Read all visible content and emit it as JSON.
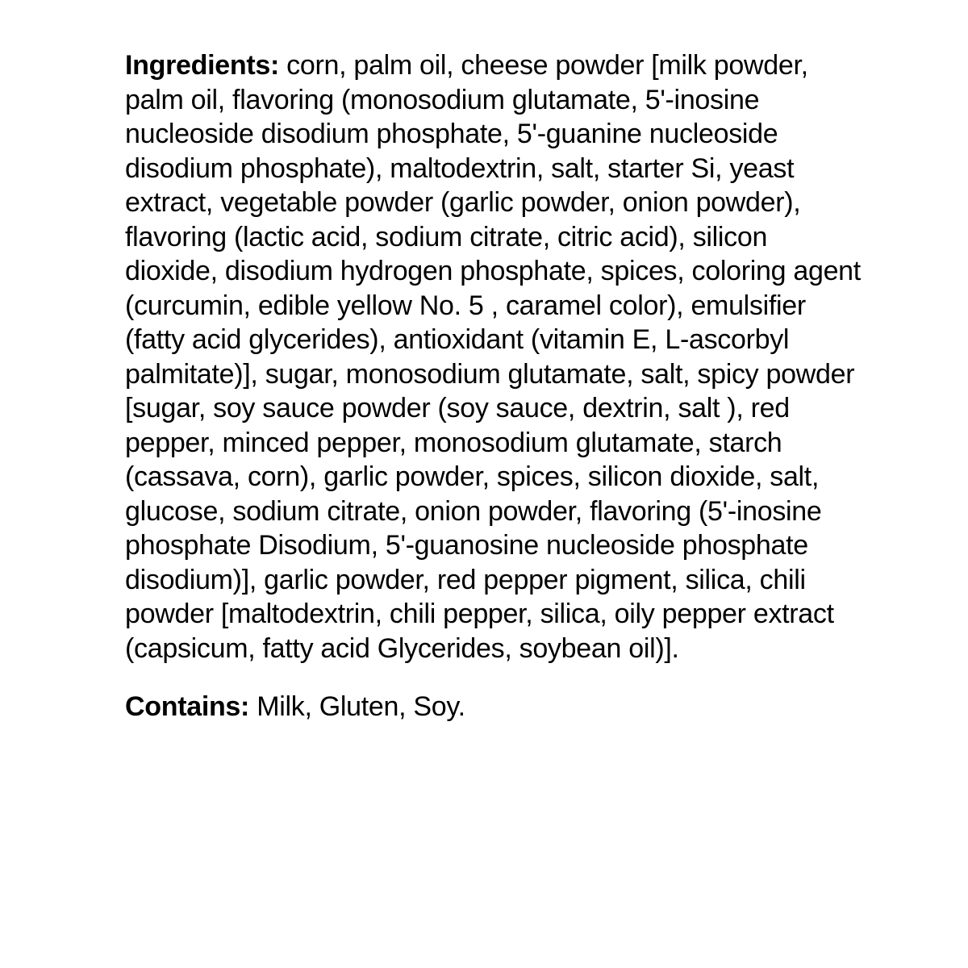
{
  "ingredients": {
    "label": "Ingredients:",
    "text": " corn, palm oil, cheese powder [milk powder, palm oil, flavoring (monosodium glutamate, 5'-inosine nucleoside disodium phosphate, 5'-guanine nucleoside disodium phosphate), maltodextrin, salt, starter Si, yeast extract, vegetable powder (garlic powder, onion powder), flavoring (lactic acid, sodium citrate, citric acid), silicon dioxide, disodium hydrogen phosphate, spices, coloring agent (curcumin, edible yellow No. 5 , caramel color), emulsifier (fatty acid glycerides), antioxidant (vitamin E, L-ascorbyl palmitate)], sugar, monosodium glutamate, salt, spicy powder [sugar, soy sauce powder (soy sauce, dextrin, salt ), red pepper, minced pepper, monosodium glutamate, starch (cassava, corn), garlic powder, spices, silicon dioxide, salt, glucose, sodium citrate, onion powder, flavoring (5'-inosine phosphate Disodium, 5'-guanosine nucleoside phosphate disodium)], garlic powder, red pepper pigment, silica, chili powder [maltodextrin, chili pepper, silica, oily pepper extract (capsicum, fatty acid Glycerides, soybean oil)]."
  },
  "contains": {
    "label": "Contains:",
    "text": " Milk, Gluten, Soy."
  },
  "styling": {
    "background_color": "#ffffff",
    "text_color": "#000000",
    "font_family": "Arial, Helvetica, sans-serif",
    "body_fontsize": 34,
    "line_height": 1.25,
    "label_weight": 700,
    "body_weight": 400
  }
}
